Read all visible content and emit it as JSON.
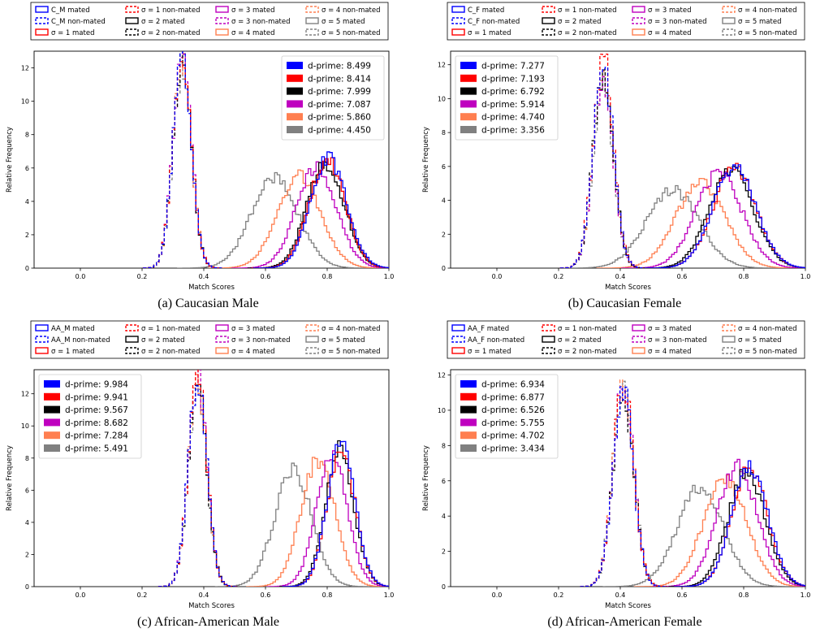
{
  "chart_data": [
    {
      "type": "line",
      "caption": "(a) Caucasian Male",
      "xlabel": "Match Scores",
      "ylabel": "Relative Frequency",
      "xlim": [
        -0.15,
        1.0
      ],
      "ylim": [
        0,
        13.0
      ],
      "xticks": [
        "0.0",
        "0.2",
        "0.4",
        "0.6",
        "0.8",
        "1.0"
      ],
      "yticks": [
        "0",
        "2",
        "4",
        "6",
        "8",
        "10",
        "12"
      ],
      "top_legend": [
        "C_M mated",
        "C_M non-mated",
        "σ = 1 mated",
        "σ = 1 non-mated",
        "σ = 2 mated",
        "σ = 2 non-mated",
        "σ = 3 mated",
        "σ = 3 non-mated",
        "σ = 4 mated",
        "σ = 4 non-mated",
        "σ = 5 mated",
        "σ = 5 non-mated"
      ],
      "inner_legend": [
        "d-prime: 8.499",
        "d-prime: 8.414",
        "d-prime: 7.999",
        "d-prime: 7.087",
        "d-prime: 5.860",
        "d-prime: 4.450"
      ],
      "inner_legend_loc": "upper right",
      "colors": [
        "#0000ff",
        "#ff0000",
        "#000000",
        "#bf00bf",
        "#ff7f50",
        "#808080"
      ],
      "series": [
        {
          "role": "non-mated",
          "mean": 0.33,
          "sd": 0.03,
          "peak": 12.6
        },
        {
          "role": "non-mated",
          "mean": 0.33,
          "sd": 0.03,
          "peak": 12.8
        },
        {
          "role": "non-mated",
          "mean": 0.33,
          "sd": 0.03,
          "peak": 12.5
        },
        {
          "role": "non-mated",
          "mean": 0.33,
          "sd": 0.03,
          "peak": 12.7
        },
        {
          "role": "non-mated",
          "mean": 0.33,
          "sd": 0.03,
          "peak": 12.3
        },
        {
          "role": "non-mated",
          "mean": 0.33,
          "sd": 0.03,
          "peak": 12.0
        },
        {
          "role": "mated",
          "mean": 0.805,
          "sd": 0.058,
          "peak": 6.6
        },
        {
          "role": "mated",
          "mean": 0.8,
          "sd": 0.058,
          "peak": 6.5
        },
        {
          "role": "mated",
          "mean": 0.795,
          "sd": 0.06,
          "peak": 6.3
        },
        {
          "role": "mated",
          "mean": 0.765,
          "sd": 0.065,
          "peak": 6.0
        },
        {
          "role": "mated",
          "mean": 0.71,
          "sd": 0.07,
          "peak": 5.5
        },
        {
          "role": "mated",
          "mean": 0.63,
          "sd": 0.075,
          "peak": 5.4
        }
      ]
    },
    {
      "type": "line",
      "caption": "(b) Caucasian Female",
      "xlabel": "Match Scores",
      "ylabel": "Relative Frequency",
      "xlim": [
        -0.15,
        1.0
      ],
      "ylim": [
        0,
        12.8
      ],
      "xticks": [
        "0.0",
        "0.2",
        "0.4",
        "0.6",
        "0.8",
        "1.0"
      ],
      "yticks": [
        "0",
        "2",
        "4",
        "6",
        "8",
        "10",
        "12"
      ],
      "top_legend": [
        "C_F mated",
        "C_F non-mated",
        "σ = 1 mated",
        "σ = 1 non-mated",
        "σ = 2 mated",
        "σ = 2 non-mated",
        "σ = 3 mated",
        "σ = 3 non-mated",
        "σ = 4 mated",
        "σ = 4 non-mated",
        "σ = 5 mated",
        "σ = 5 non-mated"
      ],
      "inner_legend": [
        "d-prime: 7.277",
        "d-prime: 7.193",
        "d-prime: 6.792",
        "d-prime: 5.914",
        "d-prime: 4.740",
        "d-prime: 3.356"
      ],
      "inner_legend_loc": "upper left",
      "colors": [
        "#0000ff",
        "#ff0000",
        "#000000",
        "#bf00bf",
        "#ff7f50",
        "#808080"
      ],
      "series": [
        {
          "role": "non-mated",
          "mean": 0.345,
          "sd": 0.033,
          "peak": 11.8
        },
        {
          "role": "non-mated",
          "mean": 0.345,
          "sd": 0.033,
          "peak": 12.4
        },
        {
          "role": "non-mated",
          "mean": 0.345,
          "sd": 0.033,
          "peak": 11.5
        },
        {
          "role": "non-mated",
          "mean": 0.345,
          "sd": 0.033,
          "peak": 11.0
        },
        {
          "role": "non-mated",
          "mean": 0.345,
          "sd": 0.033,
          "peak": 11.2
        },
        {
          "role": "non-mated",
          "mean": 0.345,
          "sd": 0.033,
          "peak": 10.8
        },
        {
          "role": "mated",
          "mean": 0.77,
          "sd": 0.07,
          "peak": 6.0
        },
        {
          "role": "mated",
          "mean": 0.77,
          "sd": 0.07,
          "peak": 5.9
        },
        {
          "role": "mated",
          "mean": 0.76,
          "sd": 0.072,
          "peak": 5.8
        },
        {
          "role": "mated",
          "mean": 0.72,
          "sd": 0.075,
          "peak": 5.6
        },
        {
          "role": "mated",
          "mean": 0.66,
          "sd": 0.08,
          "peak": 5.0
        },
        {
          "role": "mated",
          "mean": 0.57,
          "sd": 0.085,
          "peak": 4.6
        }
      ]
    },
    {
      "type": "line",
      "caption": "(c) African-American Male",
      "xlabel": "Match Scores",
      "ylabel": "Relative Frequency",
      "xlim": [
        -0.15,
        1.0
      ],
      "ylim": [
        0,
        13.5
      ],
      "xticks": [
        "0.0",
        "0.2",
        "0.4",
        "0.6",
        "0.8",
        "1.0"
      ],
      "yticks": [
        "0",
        "2",
        "4",
        "6",
        "8",
        "10",
        "12"
      ],
      "top_legend": [
        "AA_M mated",
        "AA_M non-mated",
        "σ = 1 mated",
        "σ = 1 non-mated",
        "σ = 2 mated",
        "σ = 2 non-mated",
        "σ = 3 mated",
        "σ = 3 non-mated",
        "σ = 4 mated",
        "σ = 4 non-mated",
        "σ = 5 mated",
        "σ = 5 non-mated"
      ],
      "inner_legend": [
        "d-prime: 9.984",
        "d-prime: 9.941",
        "d-prime: 9.567",
        "d-prime: 8.682",
        "d-prime: 7.284",
        "d-prime: 5.491"
      ],
      "inner_legend_loc": "upper left",
      "colors": [
        "#0000ff",
        "#ff0000",
        "#000000",
        "#bf00bf",
        "#ff7f50",
        "#808080"
      ],
      "series": [
        {
          "role": "non-mated",
          "mean": 0.38,
          "sd": 0.03,
          "peak": 12.8
        },
        {
          "role": "non-mated",
          "mean": 0.38,
          "sd": 0.03,
          "peak": 13.0
        },
        {
          "role": "non-mated",
          "mean": 0.38,
          "sd": 0.03,
          "peak": 12.5
        },
        {
          "role": "non-mated",
          "mean": 0.38,
          "sd": 0.03,
          "peak": 13.2
        },
        {
          "role": "non-mated",
          "mean": 0.38,
          "sd": 0.03,
          "peak": 12.8
        },
        {
          "role": "non-mated",
          "mean": 0.38,
          "sd": 0.03,
          "peak": 12.6
        },
        {
          "role": "mated",
          "mean": 0.845,
          "sd": 0.045,
          "peak": 8.9
        },
        {
          "role": "mated",
          "mean": 0.845,
          "sd": 0.045,
          "peak": 8.6
        },
        {
          "role": "mated",
          "mean": 0.84,
          "sd": 0.046,
          "peak": 8.5
        },
        {
          "role": "mated",
          "mean": 0.815,
          "sd": 0.05,
          "peak": 8.2
        },
        {
          "role": "mated",
          "mean": 0.77,
          "sd": 0.055,
          "peak": 7.9
        },
        {
          "role": "mated",
          "mean": 0.69,
          "sd": 0.06,
          "peak": 7.2
        }
      ]
    },
    {
      "type": "line",
      "caption": "(d) African-American Female",
      "xlabel": "Match Scores",
      "ylabel": "Relative Frequency",
      "xlim": [
        -0.15,
        1.0
      ],
      "ylim": [
        0,
        12.3
      ],
      "xticks": [
        "0.0",
        "0.2",
        "0.4",
        "0.6",
        "0.8",
        "1.0"
      ],
      "yticks": [
        "0",
        "2",
        "4",
        "6",
        "8",
        "10",
        "12"
      ],
      "top_legend": [
        "AA_F mated",
        "AA_F non-mated",
        "σ = 1 mated",
        "σ = 1 non-mated",
        "σ = 2 mated",
        "σ = 2 non-mated",
        "σ = 3 mated",
        "σ = 3 non-mated",
        "σ = 4 mated",
        "σ = 4 non-mated",
        "σ = 5 mated",
        "σ = 5 non-mated"
      ],
      "inner_legend": [
        "d-prime: 6.934",
        "d-prime: 6.877",
        "d-prime: 6.526",
        "d-prime: 5.755",
        "d-prime: 4.702",
        "d-prime: 3.434"
      ],
      "inner_legend_loc": "upper left",
      "colors": [
        "#0000ff",
        "#ff0000",
        "#000000",
        "#bf00bf",
        "#ff7f50",
        "#808080"
      ],
      "series": [
        {
          "role": "non-mated",
          "mean": 0.41,
          "sd": 0.033,
          "peak": 11.2
        },
        {
          "role": "non-mated",
          "mean": 0.41,
          "sd": 0.033,
          "peak": 11.6
        },
        {
          "role": "non-mated",
          "mean": 0.41,
          "sd": 0.033,
          "peak": 11.0
        },
        {
          "role": "non-mated",
          "mean": 0.41,
          "sd": 0.033,
          "peak": 11.4
        },
        {
          "role": "non-mated",
          "mean": 0.41,
          "sd": 0.033,
          "peak": 11.5
        },
        {
          "role": "non-mated",
          "mean": 0.41,
          "sd": 0.033,
          "peak": 11.7
        },
        {
          "role": "mated",
          "mean": 0.82,
          "sd": 0.058,
          "peak": 6.8
        },
        {
          "role": "mated",
          "mean": 0.82,
          "sd": 0.058,
          "peak": 6.7
        },
        {
          "role": "mated",
          "mean": 0.81,
          "sd": 0.06,
          "peak": 6.5
        },
        {
          "role": "mated",
          "mean": 0.78,
          "sd": 0.065,
          "peak": 6.8
        },
        {
          "role": "mated",
          "mean": 0.74,
          "sd": 0.07,
          "peak": 6.1
        },
        {
          "role": "mated",
          "mean": 0.66,
          "sd": 0.075,
          "peak": 5.6
        }
      ]
    }
  ]
}
